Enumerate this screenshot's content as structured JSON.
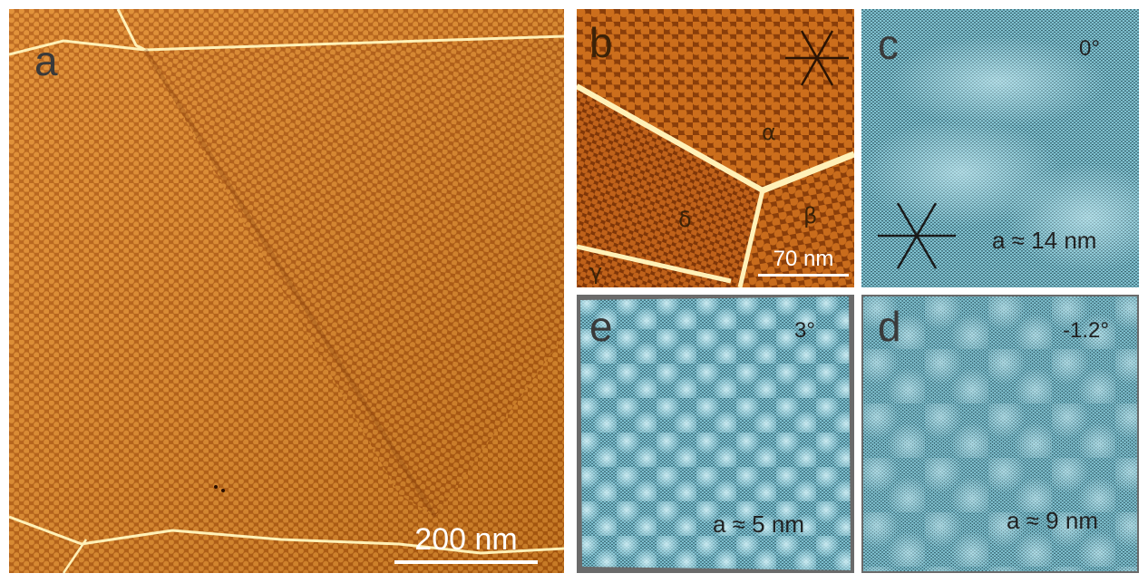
{
  "panels": {
    "a": {
      "letter": "a",
      "scale_label": "200 nm"
    },
    "b": {
      "letter": "b",
      "scale_label": "70 nm",
      "grains": [
        "α",
        "β",
        "γ",
        "δ"
      ]
    },
    "c": {
      "letter": "c",
      "angle": "0°",
      "period": "a ≈ 14 nm"
    },
    "d": {
      "letter": "d",
      "angle": "-1.2°",
      "period": "a ≈ 9 nm"
    },
    "e": {
      "letter": "e",
      "angle": "3°",
      "period": "a ≈ 5 nm"
    }
  },
  "colors": {
    "stm_orange": "#c86a14",
    "stm_dark": "#7a3608",
    "grain_boundary": "#fff1b8",
    "moire_blue": "#7ec6d6",
    "moire_light": "#c4ecf4"
  }
}
